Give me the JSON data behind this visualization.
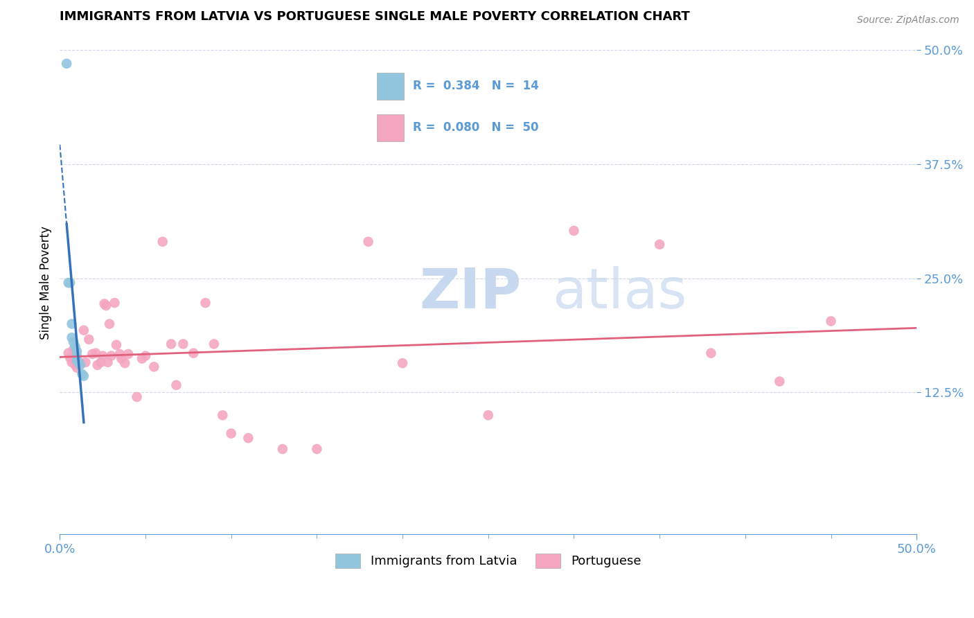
{
  "title": "IMMIGRANTS FROM LATVIA VS PORTUGUESE SINGLE MALE POVERTY CORRELATION CHART",
  "source": "Source: ZipAtlas.com",
  "ylabel": "Single Male Poverty",
  "xlim": [
    0.0,
    0.5
  ],
  "ylim": [
    -0.03,
    0.52
  ],
  "yticks": [
    0.125,
    0.25,
    0.375,
    0.5
  ],
  "ytick_labels": [
    "12.5%",
    "25.0%",
    "37.5%",
    "50.0%"
  ],
  "color_latvia": "#92c5de",
  "color_portuguese": "#f4a6c0",
  "color_trendline_latvia": "#3573b9",
  "color_trendline_portuguese": "#e0607e",
  "color_axis": "#5b9bd5",
  "color_tick_labels": "#5b9bd5",
  "color_grid": "#d0d8e8",
  "latvia_points": [
    [
      0.004,
      0.485
    ],
    [
      0.005,
      0.245
    ],
    [
      0.006,
      0.245
    ],
    [
      0.007,
      0.2
    ],
    [
      0.007,
      0.185
    ],
    [
      0.008,
      0.18
    ],
    [
      0.009,
      0.175
    ],
    [
      0.01,
      0.17
    ],
    [
      0.01,
      0.165
    ],
    [
      0.01,
      0.16
    ],
    [
      0.011,
      0.158
    ],
    [
      0.012,
      0.155
    ],
    [
      0.013,
      0.145
    ],
    [
      0.014,
      0.143
    ]
  ],
  "portuguese_points": [
    [
      0.005,
      0.168
    ],
    [
      0.006,
      0.163
    ],
    [
      0.007,
      0.158
    ],
    [
      0.008,
      0.172
    ],
    [
      0.009,
      0.155
    ],
    [
      0.01,
      0.152
    ],
    [
      0.012,
      0.157
    ],
    [
      0.014,
      0.193
    ],
    [
      0.015,
      0.158
    ],
    [
      0.017,
      0.183
    ],
    [
      0.019,
      0.167
    ],
    [
      0.021,
      0.168
    ],
    [
      0.022,
      0.155
    ],
    [
      0.024,
      0.158
    ],
    [
      0.025,
      0.165
    ],
    [
      0.026,
      0.222
    ],
    [
      0.027,
      0.22
    ],
    [
      0.028,
      0.158
    ],
    [
      0.029,
      0.2
    ],
    [
      0.03,
      0.165
    ],
    [
      0.032,
      0.223
    ],
    [
      0.033,
      0.177
    ],
    [
      0.035,
      0.167
    ],
    [
      0.036,
      0.162
    ],
    [
      0.038,
      0.157
    ],
    [
      0.04,
      0.167
    ],
    [
      0.045,
      0.12
    ],
    [
      0.048,
      0.162
    ],
    [
      0.05,
      0.165
    ],
    [
      0.055,
      0.153
    ],
    [
      0.06,
      0.29
    ],
    [
      0.065,
      0.178
    ],
    [
      0.068,
      0.133
    ],
    [
      0.072,
      0.178
    ],
    [
      0.078,
      0.168
    ],
    [
      0.085,
      0.223
    ],
    [
      0.09,
      0.178
    ],
    [
      0.095,
      0.1
    ],
    [
      0.1,
      0.08
    ],
    [
      0.11,
      0.075
    ],
    [
      0.13,
      0.063
    ],
    [
      0.15,
      0.063
    ],
    [
      0.18,
      0.29
    ],
    [
      0.2,
      0.157
    ],
    [
      0.25,
      0.1
    ],
    [
      0.3,
      0.302
    ],
    [
      0.35,
      0.287
    ],
    [
      0.38,
      0.168
    ],
    [
      0.42,
      0.137
    ],
    [
      0.45,
      0.203
    ]
  ]
}
